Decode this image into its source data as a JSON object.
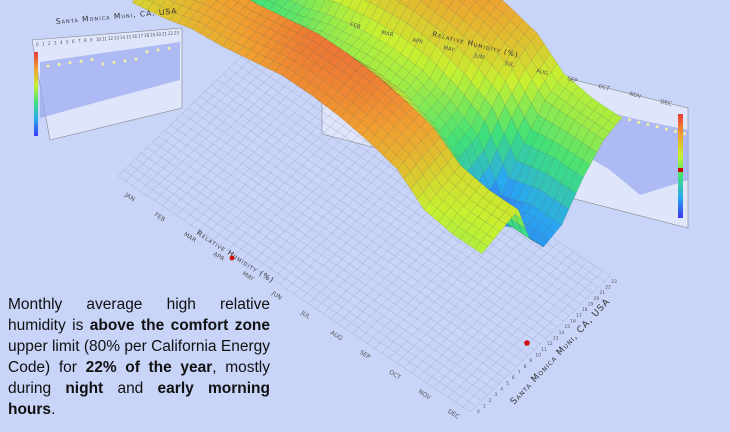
{
  "caption": {
    "t1": "Monthly average high relative humidity is ",
    "b1": "above the comfort zone",
    "t2": " upper limit (80% per California Energy Code) for ",
    "b2": "22% of the year",
    "t3": ", mostly during ",
    "b3": "night",
    "t4": " and ",
    "b4": "early morning hours",
    "t5": "."
  },
  "chart_data": {
    "type": "heatmap",
    "render": "3d-surface",
    "title": "Santa Monica Muni, CA, USA",
    "xlabel": "Relative Humidity (%)",
    "ylabel": "Santa Monica Muni, CA, USA",
    "right_wall_title": "Relative Humidity (%)",
    "left_wall_title": "Santa Monica Muni, CA, USA",
    "months": [
      "JAN",
      "FEB",
      "MAR",
      "APR",
      "MAY",
      "JUN",
      "JUL",
      "AUG",
      "SEP",
      "OCT",
      "NOV",
      "DEC"
    ],
    "hours": [
      0,
      3,
      6,
      9,
      12,
      15,
      18,
      21
    ],
    "hour_ticks": [
      0,
      1,
      2,
      3,
      4,
      5,
      6,
      7,
      8,
      9,
      10,
      11,
      12,
      13,
      14,
      15,
      16,
      17,
      18,
      19,
      20,
      21,
      22,
      23
    ],
    "zlim": [
      40,
      100
    ],
    "colorscale": [
      "#3a3af0",
      "#2aa8f0",
      "#3ee07a",
      "#c8f030",
      "#f0a030",
      "#e83a3a"
    ],
    "values": [
      [
        80,
        82,
        83,
        70,
        60,
        62,
        70,
        77
      ],
      [
        82,
        84,
        85,
        72,
        62,
        64,
        72,
        79
      ],
      [
        85,
        87,
        88,
        75,
        64,
        66,
        74,
        82
      ],
      [
        86,
        88,
        89,
        76,
        66,
        68,
        76,
        83
      ],
      [
        88,
        90,
        91,
        80,
        70,
        72,
        80,
        86
      ],
      [
        90,
        92,
        93,
        82,
        72,
        74,
        82,
        88
      ],
      [
        90,
        92,
        93,
        82,
        73,
        75,
        83,
        88
      ],
      [
        89,
        91,
        92,
        81,
        72,
        74,
        82,
        87
      ],
      [
        87,
        89,
        90,
        78,
        68,
        70,
        79,
        85
      ],
      [
        84,
        86,
        87,
        72,
        62,
        64,
        74,
        81
      ],
      [
        76,
        78,
        80,
        58,
        44,
        48,
        62,
        72
      ],
      [
        74,
        76,
        78,
        60,
        50,
        52,
        64,
        72
      ]
    ],
    "grid": true
  }
}
